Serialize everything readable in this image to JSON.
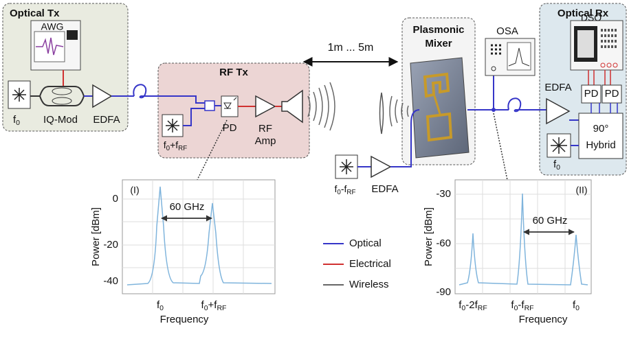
{
  "optical_tx": {
    "title": "Optical Tx",
    "awg": "AWG",
    "laser": [
      "f",
      "0"
    ],
    "modulator": "IQ-Mod",
    "amplifier": "EDFA"
  },
  "rf_tx": {
    "title": "RF Tx",
    "laser": [
      "f",
      "0",
      "+f",
      "RF"
    ],
    "detector": "PD",
    "amplifier_line1": "RF",
    "amplifier_line2": "Amp"
  },
  "distance": "1m ... 5m",
  "mixer": {
    "title_line1": "Plasmonic",
    "title_line2": "Mixer"
  },
  "local_oscillator": {
    "laser": [
      "f",
      "0",
      "-f",
      "RF"
    ],
    "amplifier": "EDFA"
  },
  "osa": "OSA",
  "optical_rx": {
    "title": "Optical Rx",
    "scope": "DSO",
    "amplifier": "EDFA",
    "detector_1": "PD",
    "detector_2": "PD",
    "hybrid_line1": "90°",
    "hybrid_line2": "Hybrid",
    "laser": [
      "f",
      "0"
    ]
  },
  "legend": [
    "Optical",
    "Electrical",
    "Wireless"
  ],
  "spectrum_1": {
    "label": "(I)",
    "y_label": "Power [dBm]",
    "x_label": "Frequency",
    "y_ticks": [
      "0",
      "-20",
      "-40"
    ],
    "x_ticks": [
      [
        "f",
        "0"
      ],
      [
        "f",
        "0",
        "+f",
        "RF"
      ]
    ],
    "annotation": "60 GHz"
  },
  "spectrum_2": {
    "label": "(II)",
    "y_label": "Power [dBm]",
    "x_label": "Frequency",
    "y_ticks": [
      "-30",
      "-60",
      "-90"
    ],
    "x_ticks": [
      [
        "f",
        "0",
        "-2f",
        "RF"
      ],
      [
        "f",
        "0",
        "-f",
        "RF"
      ],
      [
        "f",
        "0"
      ]
    ],
    "annotation": "60 GHz"
  }
}
